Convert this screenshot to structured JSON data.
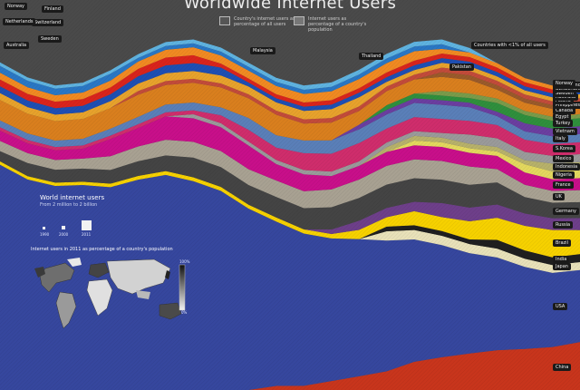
{
  "title": "Worldwide Internet Users",
  "legend": {
    "share_label": "Country's internet users as percentage of all users",
    "penetration_label": "Internet users as percentage of a country's population"
  },
  "annotations": {
    "small_countries": "Countries with <1% of all users",
    "world_users_title": "World internet users",
    "world_users_subtitle": "From 2 million to 2 billion",
    "map_title": "Internet users in 2011 as percentage of a country's population",
    "map_scale_top": "100%",
    "map_scale_bottom": "0%"
  },
  "colors": {
    "background": "#4a4a4a",
    "usa": "#36479e",
    "china": "#c8351c"
  },
  "chart_data": {
    "type": "area",
    "title": "Worldwide Internet Users",
    "stacked": true,
    "normalized": true,
    "x_label_years_legend": [
      "1990",
      "2000",
      "2011"
    ],
    "x": [
      1990,
      1991,
      1992,
      1993,
      1994,
      1995,
      1996,
      1997,
      1998,
      1999,
      2000,
      2001,
      2002,
      2003,
      2004,
      2005,
      2006,
      2007,
      2008,
      2009,
      2010,
      2011
    ],
    "series": [
      {
        "name": "China",
        "color": "#c8351c",
        "values": [
          0,
          0,
          0,
          0,
          0,
          0,
          0,
          0,
          0,
          0,
          1,
          1,
          2,
          3,
          4,
          6,
          7,
          8,
          9,
          10,
          11,
          12
        ]
      },
      {
        "name": "USA",
        "color": "#36479e",
        "values": [
          66,
          64,
          63,
          62,
          59,
          57,
          55,
          53,
          50,
          46,
          40,
          36,
          32,
          30,
          28,
          26,
          24,
          22,
          21,
          20,
          19,
          18
        ]
      },
      {
        "name": "Japan",
        "color": "#e8e1b9",
        "values": [
          0,
          0,
          0,
          0,
          0,
          0,
          0,
          0,
          0,
          0,
          0,
          0,
          0,
          0,
          2,
          2,
          2,
          2,
          2,
          2,
          2,
          2
        ]
      },
      {
        "name": "India",
        "color": "#1f1f1f",
        "values": [
          0,
          0,
          0,
          0,
          0,
          0,
          0,
          0,
          0,
          0,
          0,
          0,
          0,
          0,
          1,
          1,
          1,
          1,
          2,
          2,
          2,
          2
        ]
      },
      {
        "name": "Brazil",
        "color": "#f6d100",
        "values": [
          1,
          1,
          1,
          1,
          1,
          1,
          1,
          1,
          1,
          1,
          1,
          1,
          1,
          2,
          2,
          3,
          3,
          4,
          5,
          6,
          7,
          6
        ]
      },
      {
        "name": "Russia",
        "color": "#6e3f8a",
        "values": [
          0,
          0,
          0,
          0,
          0,
          0,
          0,
          0,
          0,
          0,
          0,
          0,
          1,
          2,
          2,
          2,
          3,
          3,
          3,
          3,
          3,
          3
        ]
      },
      {
        "name": "Germany",
        "color": "#444444",
        "values": [
          3,
          4,
          4,
          4,
          4,
          4,
          4,
          5,
          5,
          5,
          5,
          5,
          5,
          5,
          5,
          5,
          5,
          5,
          5,
          4,
          4,
          4
        ]
      },
      {
        "name": "UK",
        "color": "#a8a192",
        "values": [
          3,
          3,
          3,
          3,
          4,
          4,
          4,
          4,
          4,
          4,
          4,
          4,
          4,
          4,
          4,
          4,
          4,
          4,
          3,
          3,
          3,
          3
        ]
      },
      {
        "name": "France",
        "color": "#c80f8a",
        "values": [
          3,
          3,
          3,
          3,
          5,
          5,
          6,
          6,
          6,
          6,
          4,
          4,
          3,
          3,
          3,
          3,
          3,
          3,
          3,
          3,
          3,
          3
        ]
      },
      {
        "name": "Nigeria",
        "color": "#e3d85e",
        "values": [
          0,
          0,
          0,
          0,
          0,
          0,
          0,
          0,
          0,
          0,
          0,
          0,
          0,
          0,
          0,
          1,
          1,
          1,
          1,
          2,
          2,
          2
        ]
      },
      {
        "name": "Indonesia",
        "color": "#b7b16a",
        "values": [
          0,
          0,
          0,
          0,
          0,
          0,
          0,
          0,
          0,
          0,
          0,
          0,
          0,
          0,
          1,
          1,
          1,
          1,
          1,
          1,
          2,
          2
        ]
      },
      {
        "name": "Mexico",
        "color": "#9a9a9a",
        "values": [
          0,
          0,
          0,
          0,
          0,
          0,
          0,
          1,
          1,
          1,
          1,
          1,
          1,
          1,
          1,
          1,
          1,
          2,
          2,
          2,
          2,
          2
        ]
      },
      {
        "name": "S.Korea",
        "color": "#cf2d6c",
        "values": [
          1,
          1,
          1,
          1,
          1,
          1,
          1,
          1,
          2,
          3,
          3,
          4,
          4,
          4,
          3,
          3,
          3,
          3,
          3,
          3,
          3,
          3
        ]
      },
      {
        "name": "Italy",
        "color": "#5a7fb8",
        "values": [
          2,
          2,
          2,
          2,
          2,
          2,
          2,
          2,
          2,
          3,
          3,
          3,
          3,
          3,
          3,
          3,
          3,
          3,
          2,
          2,
          2,
          2
        ]
      },
      {
        "name": "Vietnam",
        "color": "#6b3ea0",
        "values": [
          0,
          0,
          0,
          0,
          0,
          0,
          0,
          0,
          0,
          0,
          0,
          0,
          0,
          1,
          1,
          1,
          1,
          1,
          1,
          2,
          2,
          2
        ]
      },
      {
        "name": "Turkey",
        "color": "#2f8f3d",
        "values": [
          0,
          0,
          0,
          0,
          0,
          0,
          0,
          0,
          0,
          0,
          0,
          0,
          0,
          0,
          1,
          1,
          1,
          1,
          2,
          2,
          2,
          2
        ]
      },
      {
        "name": "Egypt",
        "color": "#7a9b4a",
        "values": [
          0,
          0,
          0,
          0,
          0,
          0,
          0,
          0,
          0,
          0,
          0,
          0,
          0,
          0,
          0,
          0,
          1,
          1,
          1,
          1,
          1,
          1
        ]
      },
      {
        "name": "Canada",
        "color": "#d97f1e",
        "values": [
          6,
          6,
          6,
          6,
          6,
          6,
          5,
          5,
          5,
          5,
          5,
          4,
          4,
          3,
          3,
          3,
          3,
          3,
          2,
          2,
          2,
          2
        ]
      },
      {
        "name": "Philippines",
        "color": "#9a5a2a",
        "values": [
          0,
          0,
          0,
          0,
          0,
          0,
          0,
          0,
          0,
          0,
          0,
          0,
          0,
          0,
          0,
          0,
          1,
          1,
          1,
          1,
          1,
          1
        ]
      },
      {
        "name": "Poland",
        "color": "#c24b3a",
        "values": [
          0,
          0,
          0,
          0,
          0,
          1,
          1,
          1,
          1,
          1,
          1,
          1,
          1,
          1,
          1,
          1,
          1,
          1,
          1,
          1,
          1,
          1
        ]
      },
      {
        "name": "Australia",
        "color": "#e7a22c",
        "values": [
          2,
          2,
          2,
          2,
          2,
          2,
          2,
          2,
          2,
          2,
          2,
          2,
          2,
          2,
          1,
          1,
          1,
          1,
          1,
          1,
          1,
          1
        ]
      },
      {
        "name": "Sweden",
        "color": "#1e4fb3",
        "values": [
          2,
          2,
          2,
          2,
          2,
          2,
          2,
          2,
          2,
          1,
          1,
          1,
          1,
          1,
          1,
          1,
          1,
          1,
          1,
          1,
          1,
          1
        ]
      },
      {
        "name": "Switzerland",
        "color": "#d9241c",
        "values": [
          2,
          2,
          2,
          2,
          2,
          2,
          2,
          2,
          1,
          1,
          1,
          1,
          1,
          1,
          1,
          1,
          1,
          1,
          1,
          1,
          1,
          1
        ]
      },
      {
        "name": "Netherlands",
        "color": "#f08a22",
        "values": [
          2,
          2,
          2,
          2,
          2,
          2,
          2,
          2,
          2,
          2,
          2,
          2,
          2,
          2,
          2,
          2,
          1,
          1,
          1,
          1,
          1,
          1
        ]
      },
      {
        "name": "Finland",
        "color": "#2a77c4",
        "values": [
          2,
          2,
          2,
          2,
          2,
          1,
          1,
          1,
          1,
          1,
          1,
          1,
          1,
          1,
          1,
          1,
          1,
          0,
          0,
          0,
          0,
          0
        ]
      },
      {
        "name": "Norway",
        "color": "#5fb3e0",
        "values": [
          1,
          1,
          1,
          1,
          1,
          1,
          1,
          1,
          1,
          1,
          1,
          1,
          1,
          1,
          1,
          1,
          1,
          1,
          0,
          0,
          0,
          0
        ]
      },
      {
        "name": "Malaysia",
        "color": "#7a7a7a",
        "values": [
          0,
          0,
          0,
          0,
          0,
          0,
          0,
          0,
          0,
          0,
          0,
          0,
          0,
          0,
          0,
          0,
          0,
          0,
          0,
          0,
          0,
          0
        ]
      },
      {
        "name": "Thailand",
        "color": "#7a7a7a",
        "values": [
          0,
          0,
          0,
          0,
          0,
          0,
          0,
          0,
          0,
          0,
          0,
          0,
          0,
          0,
          0,
          0,
          0,
          0,
          0,
          0,
          0,
          0
        ]
      },
      {
        "name": "Pakistan",
        "color": "#7a7a7a",
        "values": [
          0,
          0,
          0,
          0,
          0,
          0,
          0,
          0,
          0,
          0,
          0,
          0,
          0,
          0,
          0,
          0,
          0,
          0,
          0,
          0,
          0,
          0
        ]
      },
      {
        "name": "Spain",
        "color": "#7a7a7a",
        "values": [
          0,
          0,
          0,
          0,
          0,
          0,
          0,
          0,
          0,
          0,
          0,
          0,
          0,
          0,
          0,
          0,
          0,
          0,
          0,
          0,
          0,
          0
        ]
      }
    ],
    "other_label": "Countries with <1% of all users"
  }
}
